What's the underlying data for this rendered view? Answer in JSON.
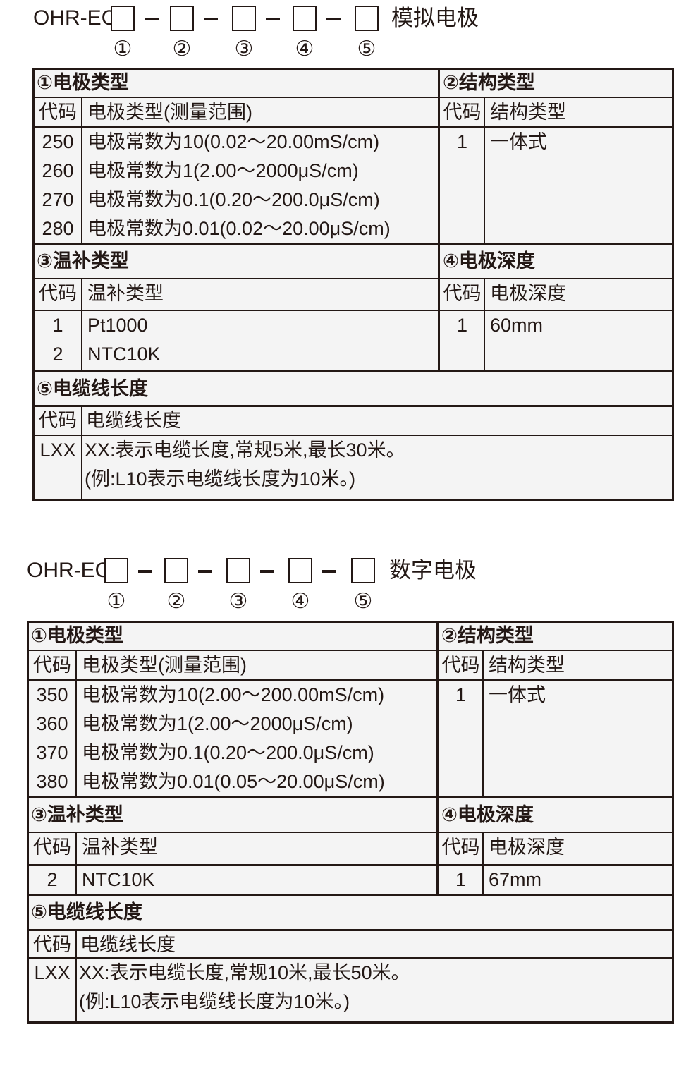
{
  "blocks": [
    {
      "model_prefix": "OHR-EC",
      "type_label": "模拟电极",
      "markers": [
        "①",
        "②",
        "③",
        "④",
        "⑤"
      ],
      "sec1": {
        "title": "①电极类型",
        "headers": [
          "代码",
          "电极类型(测量范围)"
        ],
        "rows": [
          [
            "250",
            "电极常数为10(0.02～20.00mS/cm)"
          ],
          [
            "260",
            "电极常数为1(2.00～2000μS/cm)"
          ],
          [
            "270",
            "电极常数为0.1(0.20～200.0μS/cm)"
          ],
          [
            "280",
            "电极常数为0.01(0.02～20.00μS/cm)"
          ]
        ]
      },
      "sec2": {
        "title": "②结构类型",
        "headers": [
          "代码",
          "结构类型"
        ],
        "rows": [
          [
            "1",
            "一体式"
          ]
        ]
      },
      "sec3": {
        "title": "③温补类型",
        "headers": [
          "代码",
          "温补类型"
        ],
        "rows": [
          [
            "1",
            "Pt1000"
          ],
          [
            "2",
            "NTC10K"
          ]
        ]
      },
      "sec4": {
        "title": "④电极深度",
        "headers": [
          "代码",
          "电极深度"
        ],
        "rows": [
          [
            "1",
            "60mm"
          ]
        ]
      },
      "sec5": {
        "title": "⑤电缆线长度",
        "headers": [
          "代码",
          "电缆线长度"
        ],
        "code": "LXX",
        "lines": [
          "XX:表示电缆长度,常规5米,最长30米。",
          "(例:L10表示电缆线长度为10米。)"
        ]
      }
    },
    {
      "model_prefix": "OHR-EC",
      "type_label": "数字电极",
      "markers": [
        "①",
        "②",
        "③",
        "④",
        "⑤"
      ],
      "sec1": {
        "title": "①电极类型",
        "headers": [
          "代码",
          "电极类型(测量范围)"
        ],
        "rows": [
          [
            "350",
            "电极常数为10(2.00～200.00mS/cm)"
          ],
          [
            "360",
            "电极常数为1(2.00～2000μS/cm)"
          ],
          [
            "370",
            "电极常数为0.1(0.20～200.0μS/cm)"
          ],
          [
            "380",
            "电极常数为0.01(0.05～20.00μS/cm)"
          ]
        ]
      },
      "sec2": {
        "title": "②结构类型",
        "headers": [
          "代码",
          "结构类型"
        ],
        "rows": [
          [
            "1",
            "一体式"
          ]
        ]
      },
      "sec3": {
        "title": "③温补类型",
        "headers": [
          "代码",
          "温补类型"
        ],
        "rows": [
          [
            "2",
            "NTC10K"
          ]
        ]
      },
      "sec4": {
        "title": "④电极深度",
        "headers": [
          "代码",
          "电极深度"
        ],
        "rows": [
          [
            "1",
            "67mm"
          ]
        ]
      },
      "sec5": {
        "title": "⑤电缆线长度",
        "headers": [
          "代码",
          "电缆线长度"
        ],
        "code": "LXX",
        "lines": [
          "XX:表示电缆长度,常规10米,最长50米。",
          "(例:L10表示电缆线长度为10米。)"
        ]
      }
    }
  ]
}
